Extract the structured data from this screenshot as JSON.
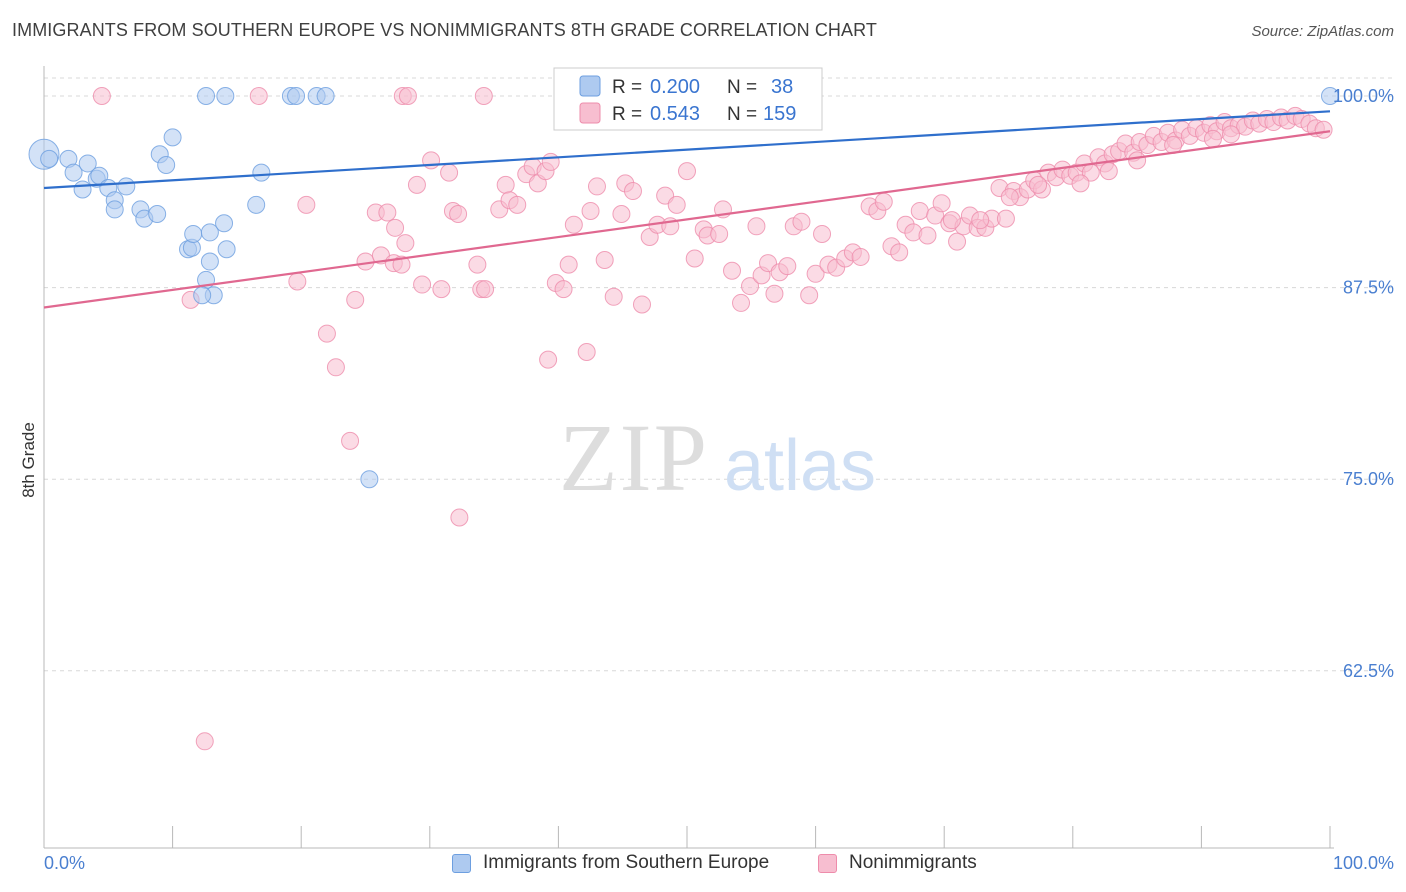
{
  "title": "IMMIGRANTS FROM SOUTHERN EUROPE VS NONIMMIGRANTS 8TH GRADE CORRELATION CHART",
  "source": "Source: ZipAtlas.com",
  "watermark": {
    "zip": "ZIP",
    "atlas": "atlas"
  },
  "colors": {
    "blue": "#6d9fe0",
    "blue_fill": "#aecaf0",
    "blue_line": "#2f6fcc",
    "pink": "#ee8cab",
    "pink_fill": "#f7bed0",
    "pink_line": "#e06890",
    "axis_text": "#4a7fd0",
    "grid": "#d8d8d8"
  },
  "legend_stats": [
    {
      "r_label": "R =",
      "r_value": "0.200",
      "n_label": "N =",
      "n_value": "38"
    },
    {
      "r_label": "R =",
      "r_value": "0.543",
      "n_label": "N =",
      "n_value": "159"
    }
  ],
  "chart_data": {
    "type": "scatter",
    "ylabel": "8th Grade",
    "xlabel": "",
    "x_tick_labels": {
      "min": "0.0%",
      "max": "100.0%"
    },
    "y_tick_labels": [
      "100.0%",
      "87.5%",
      "75.0%",
      "62.5%"
    ],
    "xlim": [
      0,
      100
    ],
    "ylim": [
      51.5,
      101.5
    ],
    "y_ticks": [
      100,
      87.5,
      75,
      62.5
    ],
    "grid": true,
    "legend_position": "bottom",
    "series": [
      {
        "name": "Immigrants from Southern Europe",
        "color": "blue",
        "trend": {
          "x": [
            0,
            100
          ],
          "y": [
            94.0,
            99.0
          ]
        },
        "points": [
          [
            0.0,
            96.2
          ],
          [
            0.4,
            95.9
          ],
          [
            1.9,
            95.9
          ],
          [
            2.3,
            95.0
          ],
          [
            3.4,
            95.6
          ],
          [
            4.1,
            94.6
          ],
          [
            4.3,
            94.8
          ],
          [
            3.0,
            93.9
          ],
          [
            5.0,
            94.0
          ],
          [
            6.4,
            94.1
          ],
          [
            5.5,
            93.2
          ],
          [
            5.5,
            92.6
          ],
          [
            7.5,
            92.6
          ],
          [
            7.8,
            92.0
          ],
          [
            9.0,
            96.2
          ],
          [
            8.8,
            92.3
          ],
          [
            9.5,
            95.5
          ],
          [
            10.0,
            97.3
          ],
          [
            11.2,
            90.0
          ],
          [
            11.5,
            90.1
          ],
          [
            11.6,
            91.0
          ],
          [
            12.9,
            91.1
          ],
          [
            12.6,
            88.0
          ],
          [
            13.2,
            87.0
          ],
          [
            12.3,
            87.0
          ],
          [
            12.9,
            89.2
          ],
          [
            14.0,
            91.7
          ],
          [
            14.2,
            90.0
          ],
          [
            16.9,
            95.0
          ],
          [
            16.5,
            92.9
          ],
          [
            12.6,
            100.0
          ],
          [
            14.1,
            100.0
          ],
          [
            19.2,
            100.0
          ],
          [
            19.6,
            100.0
          ],
          [
            21.2,
            100.0
          ],
          [
            21.9,
            100.0
          ],
          [
            25.3,
            75.0
          ],
          [
            100.0,
            100.0
          ]
        ]
      },
      {
        "name": "Nonimmigrants",
        "color": "pink",
        "trend": {
          "x": [
            0,
            100
          ],
          "y": [
            86.2,
            97.7
          ]
        },
        "points": [
          [
            4.5,
            100.0
          ],
          [
            16.7,
            100.0
          ],
          [
            27.9,
            100.0
          ],
          [
            28.3,
            100.0
          ],
          [
            34.2,
            100.0
          ],
          [
            11.4,
            86.7
          ],
          [
            12.5,
            57.9
          ],
          [
            19.7,
            87.9
          ],
          [
            20.4,
            92.9
          ],
          [
            22.0,
            84.5
          ],
          [
            22.7,
            82.3
          ],
          [
            23.8,
            77.5
          ],
          [
            24.2,
            86.7
          ],
          [
            25.0,
            89.2
          ],
          [
            25.8,
            92.4
          ],
          [
            26.2,
            89.6
          ],
          [
            26.7,
            92.4
          ],
          [
            27.2,
            89.1
          ],
          [
            27.3,
            91.4
          ],
          [
            27.8,
            89.0
          ],
          [
            28.1,
            90.4
          ],
          [
            29.0,
            94.2
          ],
          [
            29.4,
            87.7
          ],
          [
            30.1,
            95.8
          ],
          [
            30.9,
            87.4
          ],
          [
            31.5,
            95.0
          ],
          [
            31.8,
            92.5
          ],
          [
            32.2,
            92.3
          ],
          [
            32.3,
            72.5
          ],
          [
            33.7,
            89.0
          ],
          [
            34.0,
            87.4
          ],
          [
            34.3,
            87.4
          ],
          [
            35.4,
            92.6
          ],
          [
            35.9,
            94.2
          ],
          [
            36.2,
            93.2
          ],
          [
            36.8,
            92.9
          ],
          [
            37.5,
            94.9
          ],
          [
            38.0,
            95.4
          ],
          [
            38.4,
            94.3
          ],
          [
            39.0,
            95.1
          ],
          [
            39.4,
            95.7
          ],
          [
            39.2,
            82.8
          ],
          [
            39.8,
            87.8
          ],
          [
            40.4,
            87.4
          ],
          [
            40.8,
            89.0
          ],
          [
            41.2,
            91.6
          ],
          [
            42.2,
            83.3
          ],
          [
            42.5,
            92.5
          ],
          [
            43.0,
            94.1
          ],
          [
            43.6,
            89.3
          ],
          [
            44.3,
            86.9
          ],
          [
            44.9,
            92.3
          ],
          [
            45.2,
            94.3
          ],
          [
            45.8,
            93.8
          ],
          [
            46.5,
            86.4
          ],
          [
            47.1,
            90.8
          ],
          [
            47.7,
            91.6
          ],
          [
            48.3,
            93.5
          ],
          [
            48.7,
            91.5
          ],
          [
            49.2,
            92.9
          ],
          [
            50.0,
            95.1
          ],
          [
            50.6,
            89.4
          ],
          [
            51.3,
            91.3
          ],
          [
            51.6,
            90.9
          ],
          [
            52.5,
            91.0
          ],
          [
            52.8,
            92.6
          ],
          [
            53.5,
            88.6
          ],
          [
            54.2,
            86.5
          ],
          [
            54.9,
            87.6
          ],
          [
            55.4,
            91.5
          ],
          [
            55.8,
            88.3
          ],
          [
            56.3,
            89.1
          ],
          [
            56.8,
            87.1
          ],
          [
            57.2,
            88.5
          ],
          [
            57.8,
            88.9
          ],
          [
            58.3,
            91.5
          ],
          [
            58.9,
            91.8
          ],
          [
            59.5,
            87.0
          ],
          [
            60.0,
            88.4
          ],
          [
            60.5,
            91.0
          ],
          [
            61.0,
            89.0
          ],
          [
            61.6,
            88.8
          ],
          [
            62.3,
            89.4
          ],
          [
            62.9,
            89.8
          ],
          [
            63.5,
            89.5
          ],
          [
            64.2,
            92.8
          ],
          [
            64.8,
            92.5
          ],
          [
            65.3,
            93.1
          ],
          [
            65.9,
            90.2
          ],
          [
            66.5,
            89.8
          ],
          [
            67.0,
            91.6
          ],
          [
            67.6,
            91.1
          ],
          [
            68.1,
            92.5
          ],
          [
            68.7,
            90.9
          ],
          [
            69.3,
            92.2
          ],
          [
            69.8,
            93.0
          ],
          [
            70.4,
            91.7
          ],
          [
            71.0,
            90.5
          ],
          [
            71.5,
            91.5
          ],
          [
            72.0,
            92.2
          ],
          [
            72.6,
            91.4
          ],
          [
            73.2,
            91.4
          ],
          [
            73.7,
            92.0
          ],
          [
            74.3,
            94.0
          ],
          [
            74.8,
            92.0
          ],
          [
            75.4,
            93.8
          ],
          [
            75.9,
            93.4
          ],
          [
            76.5,
            93.9
          ],
          [
            77.0,
            94.5
          ],
          [
            77.6,
            93.9
          ],
          [
            78.1,
            95.0
          ],
          [
            78.7,
            94.7
          ],
          [
            79.2,
            95.2
          ],
          [
            79.8,
            94.8
          ],
          [
            80.3,
            95.0
          ],
          [
            80.9,
            95.6
          ],
          [
            81.4,
            95.0
          ],
          [
            82.0,
            96.0
          ],
          [
            82.5,
            95.6
          ],
          [
            83.1,
            96.2
          ],
          [
            83.6,
            96.4
          ],
          [
            84.1,
            96.9
          ],
          [
            84.7,
            96.3
          ],
          [
            85.2,
            97.0
          ],
          [
            85.8,
            96.8
          ],
          [
            86.3,
            97.4
          ],
          [
            86.9,
            97.0
          ],
          [
            87.4,
            97.6
          ],
          [
            88.0,
            97.1
          ],
          [
            88.5,
            97.8
          ],
          [
            89.1,
            97.4
          ],
          [
            89.6,
            97.9
          ],
          [
            90.2,
            97.6
          ],
          [
            90.7,
            98.1
          ],
          [
            91.2,
            97.7
          ],
          [
            91.8,
            98.3
          ],
          [
            92.3,
            97.9
          ],
          [
            92.9,
            98.1
          ],
          [
            93.4,
            98.0
          ],
          [
            94.0,
            98.4
          ],
          [
            94.5,
            98.2
          ],
          [
            95.1,
            98.5
          ],
          [
            95.6,
            98.3
          ],
          [
            96.2,
            98.6
          ],
          [
            96.7,
            98.4
          ],
          [
            97.3,
            98.7
          ],
          [
            97.8,
            98.5
          ],
          [
            98.4,
            98.2
          ],
          [
            98.9,
            97.9
          ],
          [
            99.5,
            97.8
          ],
          [
            92.3,
            97.5
          ],
          [
            90.9,
            97.2
          ],
          [
            87.8,
            96.8
          ],
          [
            85.0,
            95.8
          ],
          [
            82.8,
            95.1
          ],
          [
            80.6,
            94.3
          ],
          [
            77.3,
            94.2
          ],
          [
            75.1,
            93.4
          ],
          [
            72.8,
            91.9
          ],
          [
            70.6,
            91.9
          ]
        ]
      }
    ]
  }
}
